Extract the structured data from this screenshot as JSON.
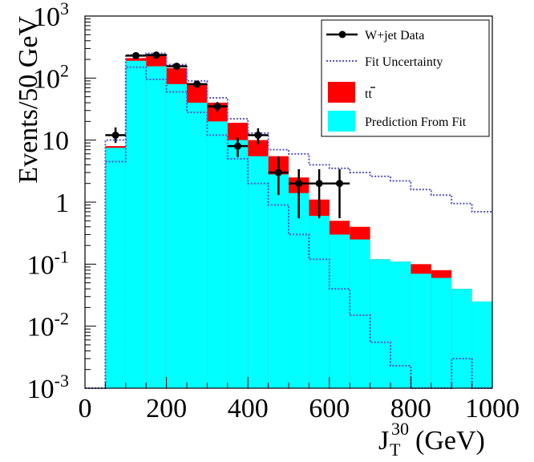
{
  "chart_data": {
    "type": "bar",
    "ylabel": "Events/50 GeV",
    "xlabel_main": "J",
    "xlabel_sup": "30",
    "xlabel_sub": "T",
    "xlabel_unit": "(GeV)",
    "xlim": [
      0,
      1000
    ],
    "ylim": [
      0.001,
      1000
    ],
    "yscale": "log",
    "x_ticks": [
      "0",
      "200",
      "400",
      "600",
      "800",
      "1000"
    ],
    "y_ticks": [
      {
        "base": "10",
        "exp": "3",
        "value": 1000
      },
      {
        "base": "10",
        "exp": "2",
        "value": 100
      },
      {
        "base": "10",
        "exp": "",
        "value": 10
      },
      {
        "base": "1",
        "exp": "",
        "value": 1
      },
      {
        "base": "10",
        "exp": "-1",
        "value": 0.1
      },
      {
        "base": "10",
        "exp": "-2",
        "value": 0.01
      },
      {
        "base": "10",
        "exp": "-3",
        "value": 0.001
      }
    ],
    "legend_position": "top-right",
    "bin_edges": [
      0,
      50,
      100,
      150,
      200,
      250,
      300,
      350,
      400,
      450,
      500,
      550,
      600,
      650,
      700,
      750,
      800,
      850,
      900,
      950,
      1000
    ],
    "series": [
      {
        "name": "Prediction From Fit",
        "color": "#00ffff",
        "values": [
          0.001,
          7.5,
          190,
          155,
          80,
          40,
          20,
          10,
          5.5,
          2.8,
          1.4,
          0.6,
          0.3,
          0.25,
          0.12,
          0.11,
          0.07,
          0.06,
          0.04,
          0.025
        ]
      },
      {
        "name": "tt",
        "label_base": "tt",
        "color": "#ff0000",
        "values": [
          0.001,
          8,
          210,
          230,
          145,
          80,
          40,
          19,
          10,
          5.5,
          2.5,
          1.1,
          0.5,
          0.4,
          0.12,
          0.11,
          0.1,
          0.08,
          0.04,
          0.025
        ]
      },
      {
        "name": "Fit Uncertainty",
        "color": "#5555cc",
        "upper": [
          0.001,
          10,
          235,
          250,
          165,
          90,
          48,
          22,
          13,
          7,
          6,
          4,
          3.5,
          3,
          2.6,
          2.2,
          1.6,
          1.3,
          0.95,
          0.7
        ],
        "lower": [
          0.001,
          4.5,
          150,
          95,
          60,
          28,
          12,
          5,
          2,
          0.9,
          0.3,
          0.12,
          0.04,
          0.015,
          0.0055,
          0.0023,
          0.001,
          0.001,
          0.003,
          0.001
        ]
      },
      {
        "name": "W+jet Data",
        "color": "#000000",
        "points": [
          {
            "x": 75,
            "y": 12,
            "ylo": 9,
            "yhi": 16
          },
          {
            "x": 125,
            "y": 230,
            "ylo": 215,
            "yhi": 245
          },
          {
            "x": 175,
            "y": 235,
            "ylo": 220,
            "yhi": 250
          },
          {
            "x": 225,
            "y": 155,
            "ylo": 143,
            "yhi": 168
          },
          {
            "x": 275,
            "y": 80,
            "ylo": 71,
            "yhi": 89
          },
          {
            "x": 325,
            "y": 35,
            "ylo": 29,
            "yhi": 41
          },
          {
            "x": 375,
            "y": 8,
            "ylo": 5.3,
            "yhi": 11
          },
          {
            "x": 425,
            "y": 12,
            "ylo": 8.6,
            "yhi": 15.5
          },
          {
            "x": 475,
            "y": 3,
            "ylo": 1.3,
            "yhi": 5.4
          },
          {
            "x": 525,
            "y": 2,
            "ylo": 0.55,
            "yhi": 3.4
          },
          {
            "x": 575,
            "y": 2,
            "ylo": 0.55,
            "yhi": 3.4
          },
          {
            "x": 625,
            "y": 2,
            "ylo": 0.55,
            "yhi": 3.4
          }
        ]
      }
    ]
  }
}
